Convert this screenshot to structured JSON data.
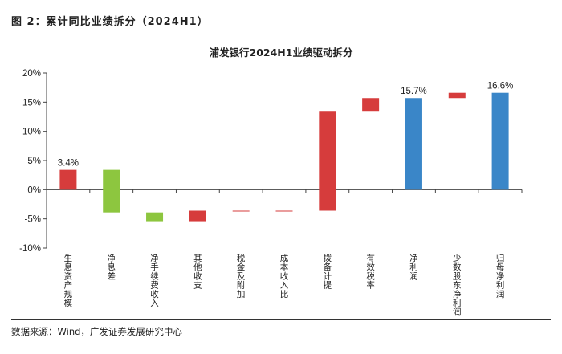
{
  "figure": {
    "label": "图 2：累计同比业绩拆分（2024H1）",
    "source": "数据来源：Wind，广发证券发展研究中心"
  },
  "colors": {
    "red": "#d63c3c",
    "green": "#8dc63f",
    "blue": "#3a86c8"
  },
  "chart_data": {
    "type": "bar",
    "subtype": "waterfall",
    "title": "浦发银行2024H1业绩驱动拆分",
    "categories": [
      "生息资产规模",
      "净息差",
      "净手续费收入",
      "其他收支",
      "税金及附加",
      "成本收入比",
      "拨备计提",
      "有效税率",
      "净利润",
      "少数股东净利润",
      "归母净利润"
    ],
    "bars": [
      {
        "category": "生息资产规模",
        "start": 0,
        "end": 3.4,
        "color": "red",
        "label": "3.4%"
      },
      {
        "category": "净息差",
        "start": 3.4,
        "end": -3.9,
        "color": "green",
        "label": ""
      },
      {
        "category": "净手续费收入",
        "start": -3.9,
        "end": -5.4,
        "color": "green",
        "label": ""
      },
      {
        "category": "其他收支",
        "start": -5.4,
        "end": -3.6,
        "color": "red",
        "label": ""
      },
      {
        "category": "税金及附加",
        "start": -3.6,
        "end": -3.7,
        "color": "red",
        "label": ""
      },
      {
        "category": "成本收入比",
        "start": -3.7,
        "end": -3.6,
        "color": "red",
        "label": ""
      },
      {
        "category": "拨备计提",
        "start": -3.6,
        "end": 13.5,
        "color": "red",
        "label": ""
      },
      {
        "category": "有效税率",
        "start": 13.5,
        "end": 15.7,
        "color": "red",
        "label": ""
      },
      {
        "category": "净利润",
        "start": 0,
        "end": 15.7,
        "color": "blue",
        "label": "15.7%"
      },
      {
        "category": "少数股东净利润",
        "start": 15.7,
        "end": 16.6,
        "color": "red",
        "label": ""
      },
      {
        "category": "归母净利润",
        "start": 0,
        "end": 16.6,
        "color": "blue",
        "label": "16.6%"
      }
    ],
    "yticks": [
      "20%",
      "15%",
      "10%",
      "5%",
      "0%",
      "-5%",
      "-10%"
    ],
    "ylim": [
      -10,
      20
    ],
    "xlabel": "",
    "ylabel": "",
    "grid": false,
    "legend": "none"
  }
}
